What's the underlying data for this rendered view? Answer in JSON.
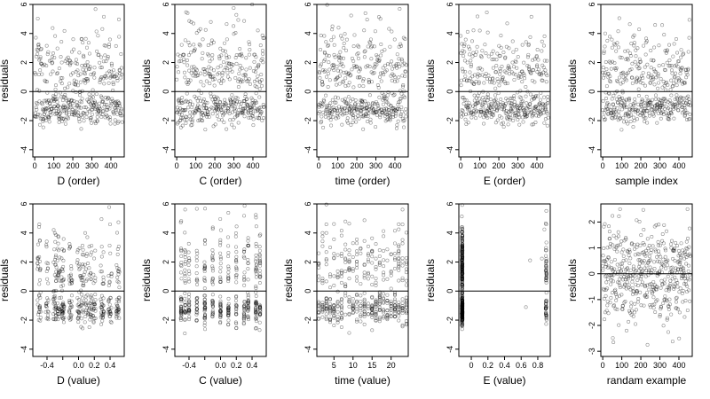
{
  "chart_data": [
    {
      "type": "scatter",
      "xlabel": "D (order)",
      "ylabel": "residuals",
      "xlim": [
        -10,
        470
      ],
      "ylim": [
        -4.5,
        6
      ],
      "xticks": [
        0,
        100,
        200,
        300,
        400
      ],
      "yticks": [
        -4,
        -2,
        0,
        2,
        4,
        6
      ],
      "hline": 0,
      "gen": {
        "mode": "order",
        "n": 460,
        "seed": 11,
        "band": -1.2,
        "max": 6,
        "min": -4.3
      }
    },
    {
      "type": "scatter",
      "xlabel": "C (order)",
      "ylabel": "residuals",
      "xlim": [
        -10,
        470
      ],
      "ylim": [
        -4.5,
        6
      ],
      "xticks": [
        0,
        100,
        200,
        300,
        400
      ],
      "yticks": [
        -4,
        -2,
        0,
        2,
        4,
        6
      ],
      "hline": 0,
      "gen": {
        "mode": "order",
        "n": 460,
        "seed": 22,
        "band": -1.2,
        "max": 6,
        "min": -4.3
      }
    },
    {
      "type": "scatter",
      "xlabel": "time (order)",
      "ylabel": "residuals",
      "xlim": [
        -10,
        470
      ],
      "ylim": [
        -4.5,
        6
      ],
      "xticks": [
        0,
        100,
        200,
        300,
        400
      ],
      "yticks": [
        -4,
        -2,
        0,
        2,
        4,
        6
      ],
      "hline": 0,
      "gen": {
        "mode": "order",
        "n": 460,
        "seed": 33,
        "band": -1.2,
        "max": 6,
        "min": -4.3
      }
    },
    {
      "type": "scatter",
      "xlabel": "E (order)",
      "ylabel": "residuals",
      "xlim": [
        -10,
        470
      ],
      "ylim": [
        -4.5,
        6
      ],
      "xticks": [
        0,
        100,
        200,
        300,
        400
      ],
      "yticks": [
        -4,
        -2,
        0,
        2,
        4,
        6
      ],
      "hline": 0,
      "gen": {
        "mode": "order",
        "n": 460,
        "seed": 44,
        "band": -1.2,
        "max": 6,
        "min": -4.3
      }
    },
    {
      "type": "scatter",
      "xlabel": "sample index",
      "ylabel": "residuals",
      "xlim": [
        -10,
        470
      ],
      "ylim": [
        -4.5,
        6
      ],
      "xticks": [
        0,
        100,
        200,
        300,
        400
      ],
      "yticks": [
        -4,
        -2,
        0,
        2,
        4,
        6
      ],
      "hline": 0,
      "gen": {
        "mode": "order",
        "n": 460,
        "seed": 55,
        "band": -1.2,
        "max": 6,
        "min": -4.3
      }
    },
    {
      "type": "scatter",
      "xlabel": "D (value)",
      "ylabel": "residuals",
      "xlim": [
        -0.58,
        0.58
      ],
      "ylim": [
        -4.5,
        6
      ],
      "xticks": [
        -0.4,
        -0.2,
        0.0,
        0.2,
        0.4
      ],
      "xticklabels": [
        "-0.4",
        "",
        "0.0",
        "0.2",
        "0.4"
      ],
      "yticks": [
        -4,
        -2,
        0,
        2,
        4,
        6
      ],
      "hline": 0,
      "gen": {
        "mode": "levels",
        "levels": [
          -0.5,
          -0.4,
          -0.3,
          -0.25,
          -0.2,
          -0.1,
          0,
          0.05,
          0.1,
          0.15,
          0.2,
          0.3,
          0.4,
          0.5
        ],
        "n": 460,
        "seed": 66,
        "band": -1.2,
        "max": 6,
        "min": -4.3,
        "jit": 0.02
      }
    },
    {
      "type": "scatter",
      "xlabel": "C (value)",
      "ylabel": "residuals",
      "xlim": [
        -0.58,
        0.58
      ],
      "ylim": [
        -4.5,
        6
      ],
      "xticks": [
        -0.4,
        -0.2,
        0.0,
        0.2,
        0.4
      ],
      "xticklabels": [
        "-0.4",
        "",
        "0.0",
        "0.2",
        "0.4"
      ],
      "yticks": [
        -4,
        -2,
        0,
        2,
        4,
        6
      ],
      "hline": 0,
      "gen": {
        "mode": "levels",
        "levels": [
          -0.5,
          -0.45,
          -0.4,
          -0.3,
          -0.2,
          -0.1,
          0,
          0.1,
          0.2,
          0.3,
          0.35,
          0.45,
          0.5
        ],
        "n": 460,
        "seed": 77,
        "band": -1.2,
        "max": 6,
        "min": -4.3,
        "jit": 0.005
      }
    },
    {
      "type": "scatter",
      "xlabel": "time (value)",
      "ylabel": "residuals",
      "xlim": [
        0.5,
        24.5
      ],
      "ylim": [
        -4.5,
        6
      ],
      "xticks": [
        5,
        10,
        15,
        20
      ],
      "yticks": [
        -4,
        -2,
        0,
        2,
        4,
        6
      ],
      "hline": 0,
      "gen": {
        "mode": "levels",
        "levels": [
          1,
          2,
          3,
          4,
          5,
          6,
          7,
          8,
          9,
          10,
          11,
          12,
          13,
          14,
          15,
          16,
          17,
          18,
          19,
          20,
          21,
          22,
          23,
          24
        ],
        "n": 460,
        "seed": 88,
        "band": -1.2,
        "max": 6,
        "min": -4.3,
        "jit": 0.0
      }
    },
    {
      "type": "scatter",
      "xlabel": "E (value)",
      "ylabel": "residuals",
      "xlim": [
        -0.15,
        0.95
      ],
      "ylim": [
        -4.5,
        6
      ],
      "xticks": [
        0.0,
        0.2,
        0.4,
        0.6,
        0.8
      ],
      "yticks": [
        -4,
        -2,
        0,
        2,
        4,
        6
      ],
      "hline": 0,
      "gen": {
        "mode": "E",
        "n": 460,
        "seed": 99,
        "band": -1.2,
        "max": 6,
        "min": -4.3
      }
    },
    {
      "type": "scatter",
      "xlabel": "randam example",
      "ylabel": "residuals",
      "xlim": [
        -10,
        470
      ],
      "ylim": [
        -3.2,
        2.7
      ],
      "xticks": [
        0,
        100,
        200,
        300,
        400
      ],
      "yticks": [
        -3,
        -2,
        -1,
        0,
        1,
        2
      ],
      "hline": 0,
      "gen": {
        "mode": "normal",
        "n": 460,
        "seed": 123,
        "max": 2.5,
        "min": -3
      }
    }
  ]
}
